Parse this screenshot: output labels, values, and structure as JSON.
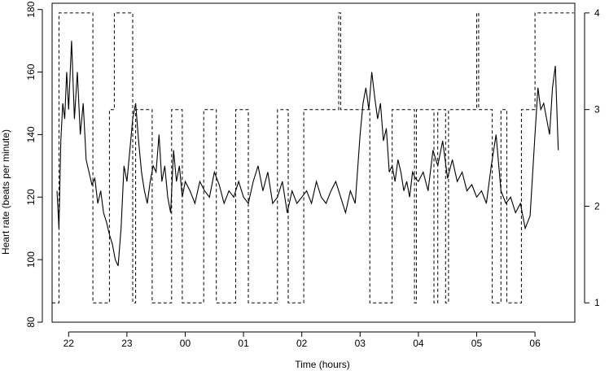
{
  "chart_data": {
    "type": "line",
    "xlabel": "Time (hours)",
    "ylabel": "Heart rate (beats per minute)",
    "ylim": [
      80,
      182
    ],
    "y2lim": [
      1,
      4
    ],
    "xlim": [
      "21:43",
      "06:41"
    ],
    "x_ticks": [
      "22",
      "23",
      "00",
      "01",
      "02",
      "03",
      "04",
      "05",
      "06"
    ],
    "y_ticks": [
      80,
      100,
      120,
      140,
      160,
      180
    ],
    "y2_ticks": [
      1,
      2,
      3,
      4
    ],
    "grid": false,
    "legend": "none",
    "series": [
      {
        "style": "solid",
        "color": "#000000",
        "axis": "left",
        "x": [
          "21:48",
          "21:50",
          "21:52",
          "21:54",
          "21:56",
          "21:58",
          "22:00",
          "22:03",
          "22:06",
          "22:09",
          "22:12",
          "22:15",
          "22:18",
          "22:21",
          "22:24",
          "22:27",
          "22:30",
          "22:33",
          "22:36",
          "22:39",
          "22:42",
          "22:45",
          "22:48",
          "22:51",
          "22:54",
          "22:57",
          "23:00",
          "23:03",
          "23:06",
          "23:09",
          "23:12",
          "23:15",
          "23:18",
          "23:21",
          "23:24",
          "23:27",
          "23:30",
          "23:33",
          "23:36",
          "23:39",
          "23:42",
          "23:45",
          "23:48",
          "23:51",
          "23:54",
          "23:57",
          "00:00",
          "00:05",
          "00:10",
          "00:15",
          "00:20",
          "00:25",
          "00:30",
          "00:35",
          "00:40",
          "00:45",
          "00:50",
          "00:55",
          "01:00",
          "01:05",
          "01:10",
          "01:15",
          "01:20",
          "01:25",
          "01:30",
          "01:35",
          "01:40",
          "01:45",
          "01:50",
          "01:55",
          "02:00",
          "02:05",
          "02:10",
          "02:15",
          "02:20",
          "02:25",
          "02:30",
          "02:35",
          "02:40",
          "02:45",
          "02:50",
          "02:55",
          "03:00",
          "03:03",
          "03:06",
          "03:09",
          "03:12",
          "03:15",
          "03:18",
          "03:21",
          "03:24",
          "03:27",
          "03:30",
          "03:33",
          "03:36",
          "03:39",
          "03:42",
          "03:45",
          "03:48",
          "03:51",
          "03:54",
          "03:57",
          "04:00",
          "04:05",
          "04:10",
          "04:15",
          "04:20",
          "04:25",
          "04:30",
          "04:35",
          "04:40",
          "04:45",
          "04:50",
          "04:55",
          "05:00",
          "05:05",
          "05:10",
          "05:15",
          "05:20",
          "05:25",
          "05:30",
          "05:35",
          "05:40",
          "05:45",
          "05:50",
          "05:55",
          "06:00",
          "06:03",
          "06:06",
          "06:09",
          "06:12",
          "06:15",
          "06:18",
          "06:21",
          "06:24"
        ],
        "values": [
          122,
          110,
          138,
          150,
          145,
          160,
          148,
          170,
          145,
          160,
          140,
          150,
          132,
          128,
          124,
          126,
          118,
          122,
          115,
          112,
          108,
          105,
          100,
          98,
          110,
          130,
          125,
          135,
          145,
          150,
          138,
          128,
          122,
          118,
          125,
          130,
          128,
          140,
          125,
          130,
          120,
          115,
          135,
          125,
          130,
          120,
          125,
          122,
          118,
          125,
          122,
          120,
          128,
          124,
          118,
          122,
          120,
          125,
          120,
          118,
          125,
          130,
          122,
          128,
          118,
          120,
          125,
          115,
          122,
          118,
          120,
          122,
          118,
          125,
          120,
          118,
          122,
          125,
          120,
          115,
          122,
          118,
          140,
          150,
          155,
          148,
          160,
          152,
          145,
          150,
          138,
          142,
          128,
          130,
          125,
          132,
          128,
          122,
          125,
          120,
          128,
          126,
          125,
          128,
          122,
          135,
          130,
          138,
          126,
          132,
          125,
          128,
          122,
          124,
          120,
          122,
          118,
          130,
          140,
          122,
          118,
          120,
          115,
          118,
          110,
          114,
          140,
          155,
          148,
          150,
          145,
          140,
          155,
          162,
          135
        ]
      },
      {
        "style": "dashed",
        "color": "#000000",
        "axis": "right",
        "x": [
          "21:43",
          "21:50",
          "22:25",
          "22:42",
          "22:47",
          "22:57",
          "23:03",
          "23:06",
          "23:09",
          "23:12",
          "23:26",
          "23:46",
          "23:57",
          "00:19",
          "00:32",
          "00:52",
          "01:05",
          "01:35",
          "01:46",
          "02:02",
          "02:20",
          "02:38",
          "02:40",
          "03:10",
          "03:33",
          "03:56",
          "03:58",
          "04:05",
          "04:16",
          "04:20",
          "04:28",
          "04:31",
          "05:00",
          "05:02",
          "05:03",
          "05:09",
          "05:16",
          "05:25",
          "05:31",
          "05:40",
          "05:46",
          "06:00",
          "06:40"
        ],
        "values": [
          1,
          4,
          1,
          3,
          4,
          4,
          4,
          1,
          3,
          3,
          1,
          3,
          1,
          3,
          1,
          3,
          1,
          3,
          1,
          3,
          3,
          4,
          3,
          1,
          3,
          1,
          3,
          3,
          1,
          3,
          1,
          3,
          4,
          3,
          3,
          3,
          1,
          3,
          1,
          1,
          3,
          4,
          4
        ]
      }
    ]
  }
}
